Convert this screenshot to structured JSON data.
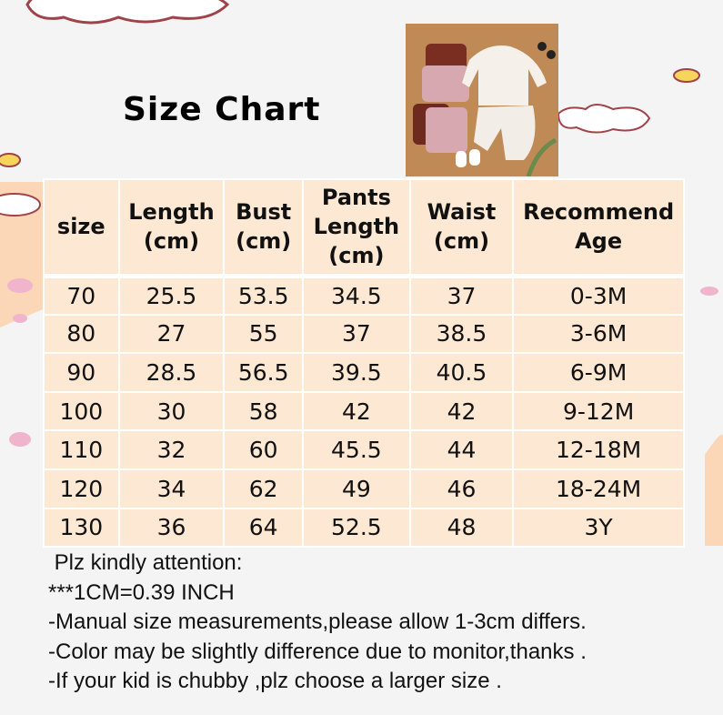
{
  "title": "Size Chart",
  "table": {
    "headers": [
      [
        "size"
      ],
      [
        "Length",
        "(cm)"
      ],
      [
        "Bust",
        "(cm)"
      ],
      [
        "Pants",
        "Length",
        "(cm)"
      ],
      [
        "Waist",
        "(cm)"
      ],
      [
        "Recommend",
        "Age"
      ]
    ],
    "rows": [
      [
        "70",
        "25.5",
        "53.5",
        "34.5",
        "37",
        "0-3M"
      ],
      [
        "80",
        "27",
        "55",
        "37",
        "38.5",
        "3-6M"
      ],
      [
        "90",
        "28.5",
        "56.5",
        "39.5",
        "40.5",
        "6-9M"
      ],
      [
        "100",
        "30",
        "58",
        "42",
        "42",
        "9-12M"
      ],
      [
        "110",
        "32",
        "60",
        "45.5",
        "44",
        "12-18M"
      ],
      [
        "120",
        "34",
        "62",
        "49",
        "46",
        "18-24M"
      ],
      [
        "130",
        "36",
        "64",
        "52.5",
        "48",
        "3Y"
      ]
    ]
  },
  "notes": [
    " Plz kindly attention:",
    "***1CM=0.39 INCH",
    "-Manual size measurements,please allow 1-3cm differs.",
    "-Color may be slightly difference due to monitor,thanks .",
    "-If your kid is chubby ,plz choose a larger size ."
  ],
  "colors": {
    "cell": "#fde8d4",
    "cloud_outline": "#a0424a",
    "background": "#f4f4f4"
  }
}
